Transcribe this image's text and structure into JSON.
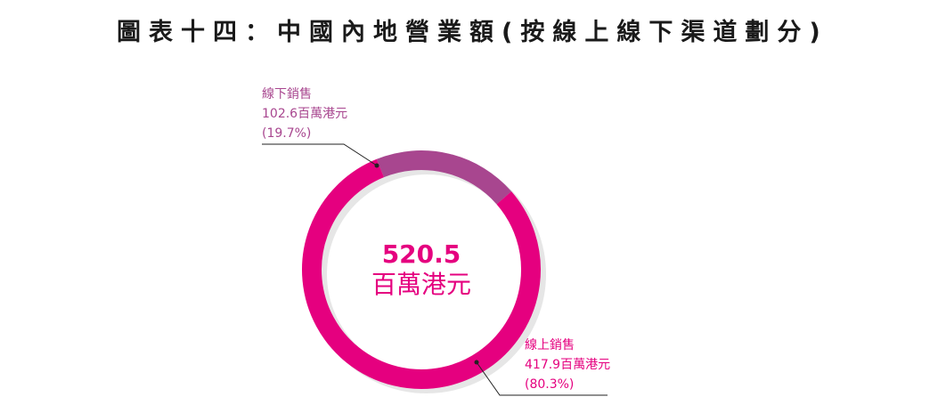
{
  "page": {
    "title": "圖表十四：中國內地營業額(按線上線下渠道劃分)"
  },
  "chart_data": {
    "type": "pie",
    "variant": "donut",
    "center": {
      "value": "520.5",
      "unit": "百萬港元"
    },
    "total": 520.5,
    "unit": "百萬港元",
    "slices": [
      {
        "name": "線下銷售",
        "value": 102.6,
        "value_label": "102.6百萬港元",
        "percent": 19.7,
        "percent_label": "(19.7%)",
        "color": "#a8468f"
      },
      {
        "name": "線上銷售",
        "value": 417.9,
        "value_label": "417.9百萬港元",
        "percent": 80.3,
        "percent_label": "(80.3%)",
        "color": "#e5007f"
      }
    ],
    "legend": "none",
    "grid": false
  },
  "colors": {
    "accent": "#e5007f",
    "offline": "#a8468f",
    "shadow": "#e6e6e6",
    "leader": "#222222"
  }
}
